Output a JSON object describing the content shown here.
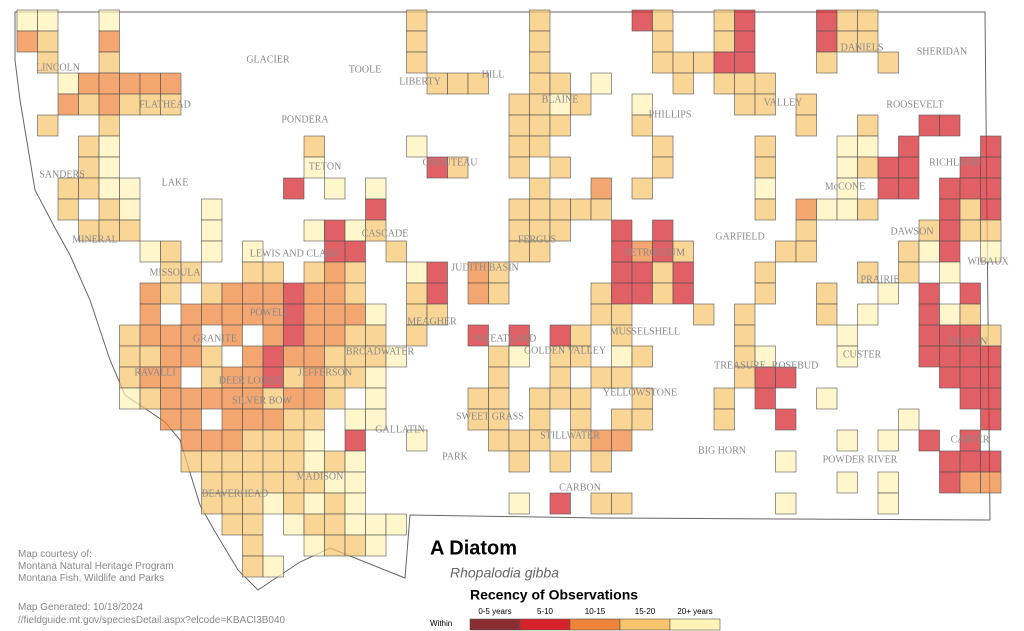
{
  "title": "A Diatom",
  "subtitle": "Rhopalodia gibba",
  "legend": {
    "title": "Recency of Observations",
    "prefix": "Within",
    "items": [
      {
        "label": "0-5 years",
        "color": "#8b2e34"
      },
      {
        "label": "5-10",
        "color": "#d6232a"
      },
      {
        "label": "10-15",
        "color": "#f0833a"
      },
      {
        "label": "15-20",
        "color": "#f6c56e"
      },
      {
        "label": "20+ years",
        "color": "#fff3b8"
      }
    ]
  },
  "credits": [
    "Map courtesy of:",
    "Montana Natural Heritage Program",
    "Montana Fish, Wildlife and Parks"
  ],
  "generated": "Map Generated: 10/18/2024",
  "url": "//fieldguide.mt.gov/speciesDetail.aspx?elcode=KBACI3B040",
  "counties": [
    "LINCOLN",
    "FLATHEAD",
    "GLACIER",
    "TOOLE",
    "LIBERTY",
    "HILL",
    "BLAINE",
    "PHILLIPS",
    "VALLEY",
    "DANIELS",
    "SHERIDAN",
    "ROOSEVELT",
    "RICHLAND",
    "McCONE",
    "PONDERA",
    "TETON",
    "CHOUTEAU",
    "SANDERS",
    "LAKE",
    "MINERAL",
    "MISSOULA",
    "LEWIS AND CLARK",
    "CASCADE",
    "JUDITH BASIN",
    "FERGUS",
    "PETROLEUM",
    "GARFIELD",
    "DAWSON",
    "WIBAUX",
    "PRAIRIE",
    "POWELL",
    "GRANITE",
    "RAVALLI",
    "DEER LODGE",
    "SILVER BOW",
    "JEFFERSON",
    "BROADWATER",
    "MEAGHER",
    "WHEATLAND",
    "GOLDEN VALLEY",
    "MUSSELSHELL",
    "TREASURE",
    "ROSEBUD",
    "CUSTER",
    "FALLON",
    "YELLOWSTONE",
    "SWEET GRASS",
    "STILLWATER",
    "GALLATIN",
    "PARK",
    "BIG HORN",
    "POWDER RIVER",
    "CARTER",
    "MADISON",
    "BEAVERHEAD",
    "CARBON"
  ]
}
